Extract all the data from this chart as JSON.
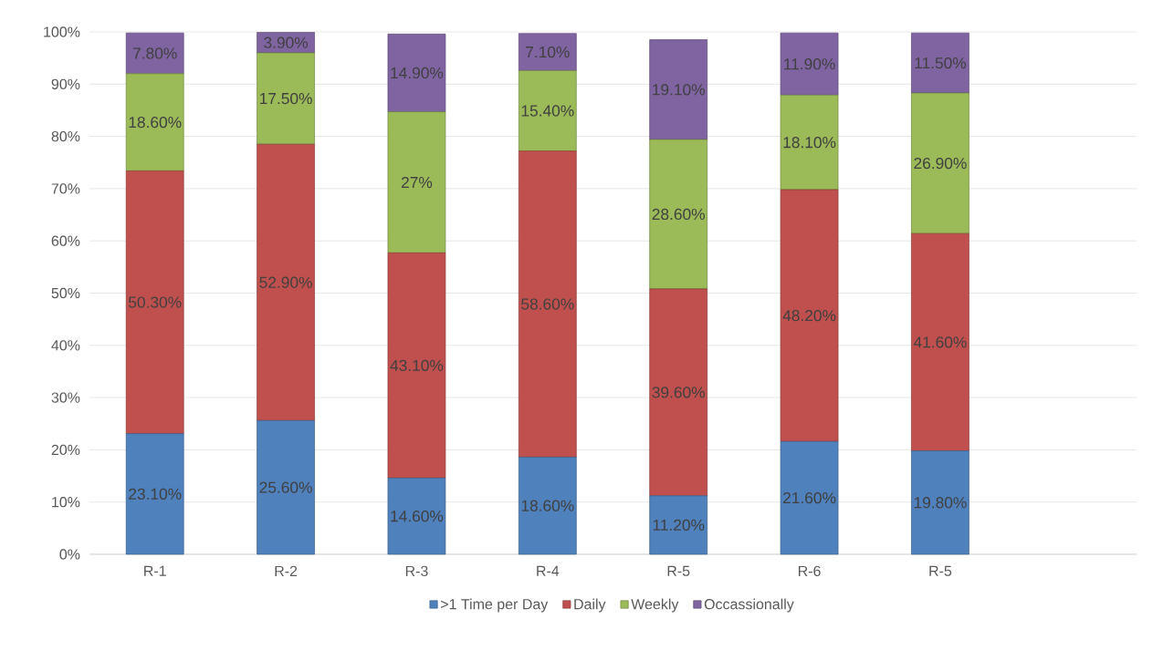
{
  "chart_data": {
    "type": "bar",
    "stacked": true,
    "categories": [
      "R-1",
      "R-2",
      "R-3",
      "R-4",
      "R-5",
      "R-6",
      "R-5",
      null
    ],
    "series": [
      {
        "name": ">1 Time per Day",
        "color": "#4f81bd",
        "values": [
          23.1,
          25.6,
          14.6,
          18.6,
          11.2,
          21.6,
          19.8,
          null
        ],
        "value_labels": [
          "23.10%",
          "25.60%",
          "14.60%",
          "18.60%",
          "11.20%",
          "21.60%",
          "19.80%",
          null
        ]
      },
      {
        "name": "Daily",
        "color": "#c0504d",
        "values": [
          50.3,
          52.9,
          43.1,
          58.6,
          39.6,
          48.2,
          41.6,
          null
        ],
        "value_labels": [
          "50.30%",
          "52.90%",
          "43.10%",
          "58.60%",
          "39.60%",
          "48.20%",
          "41.60%",
          null
        ]
      },
      {
        "name": "Weekly",
        "color": "#9bbb59",
        "values": [
          18.6,
          17.5,
          27,
          15.4,
          28.6,
          18.1,
          26.9,
          null
        ],
        "value_labels": [
          "18.60%",
          "17.50%",
          "27%",
          "15.40%",
          "28.60%",
          "18.10%",
          "26.90%",
          null
        ]
      },
      {
        "name": "Occassionally",
        "color": "#8064a2",
        "values": [
          7.8,
          3.9,
          14.9,
          7.1,
          19.1,
          11.9,
          11.5,
          null
        ],
        "value_labels": [
          "7.80%",
          "3.90%",
          "14.90%",
          "7.10%",
          "19.10%",
          "11.90%",
          "11.50%",
          null
        ]
      }
    ],
    "ylim": [
      0,
      100
    ],
    "yticks": [
      {
        "value": 0,
        "label": "0%"
      },
      {
        "value": 10,
        "label": "10%"
      },
      {
        "value": 20,
        "label": "20%"
      },
      {
        "value": 30,
        "label": "30%"
      },
      {
        "value": 40,
        "label": "40%"
      },
      {
        "value": 50,
        "label": "50%"
      },
      {
        "value": 60,
        "label": "60%"
      },
      {
        "value": 70,
        "label": "70%"
      },
      {
        "value": 80,
        "label": "80%"
      },
      {
        "value": 90,
        "label": "90%"
      },
      {
        "value": 100,
        "label": "100%"
      }
    ],
    "grid": "y",
    "legend": "bottom"
  }
}
